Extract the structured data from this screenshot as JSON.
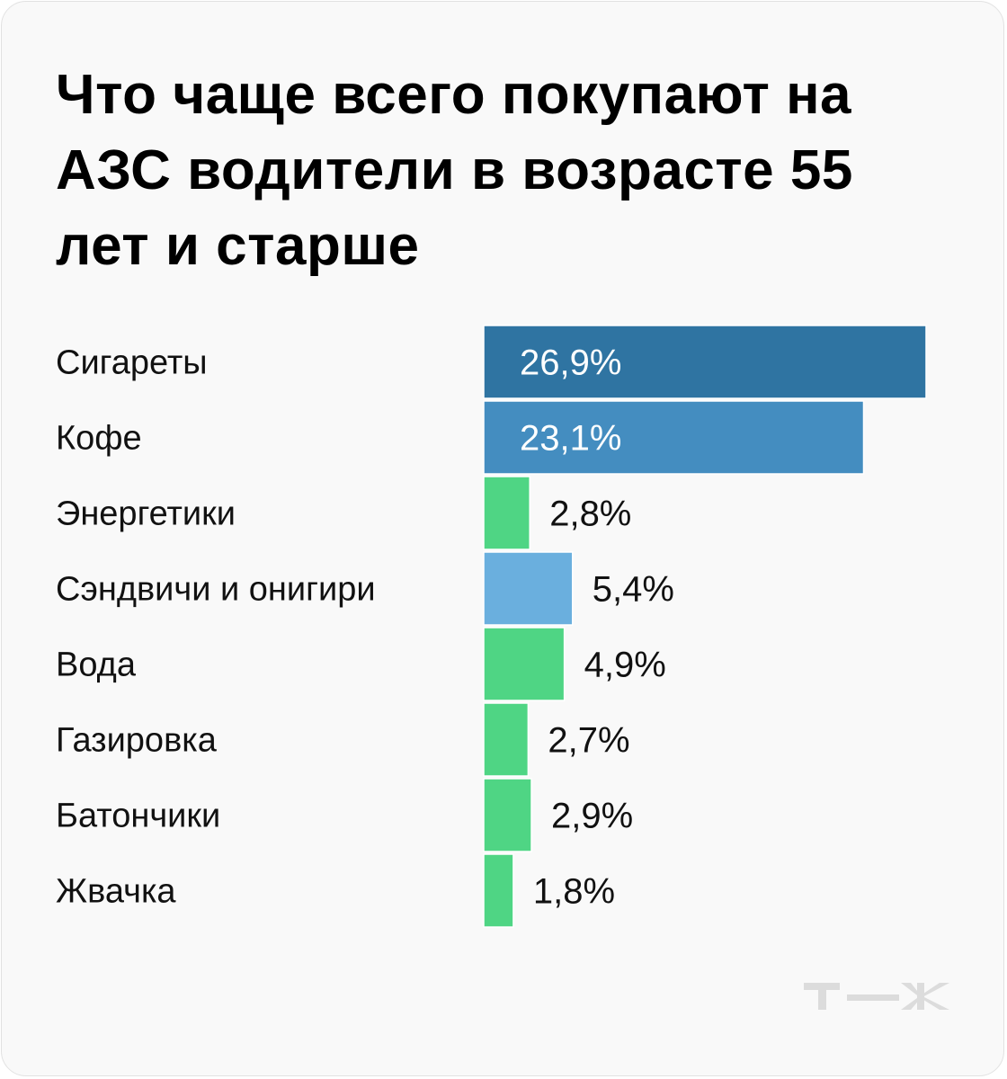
{
  "title": "Что чаще всего покупают на АЗС водители в возрасте 55 лет и старше",
  "logo_text": "т—ж",
  "chart_data": {
    "type": "bar",
    "orientation": "horizontal",
    "title": "Что чаще всего покупают на АЗС водители в возрасте 55 лет и старше",
    "categories": [
      "Сигареты",
      "Кофе",
      "Энергетики",
      "Сэндвичи и онигири",
      "Вода",
      "Газировка",
      "Батончики",
      "Жвачка"
    ],
    "values": [
      26.9,
      23.1,
      2.8,
      5.4,
      4.9,
      2.7,
      2.9,
      1.8
    ],
    "value_labels": [
      "26,9%",
      "23,1%",
      "2,8%",
      "5,4%",
      "4,9%",
      "2,7%",
      "2,9%",
      "1,8%"
    ],
    "colors": [
      "#2f74a2",
      "#448dc0",
      "#4fd584",
      "#6aafde",
      "#4fd584",
      "#4fd584",
      "#4fd584",
      "#4fd584"
    ],
    "xlim": [
      0,
      26.9
    ],
    "grid": false,
    "xlabel": "",
    "ylabel": ""
  }
}
